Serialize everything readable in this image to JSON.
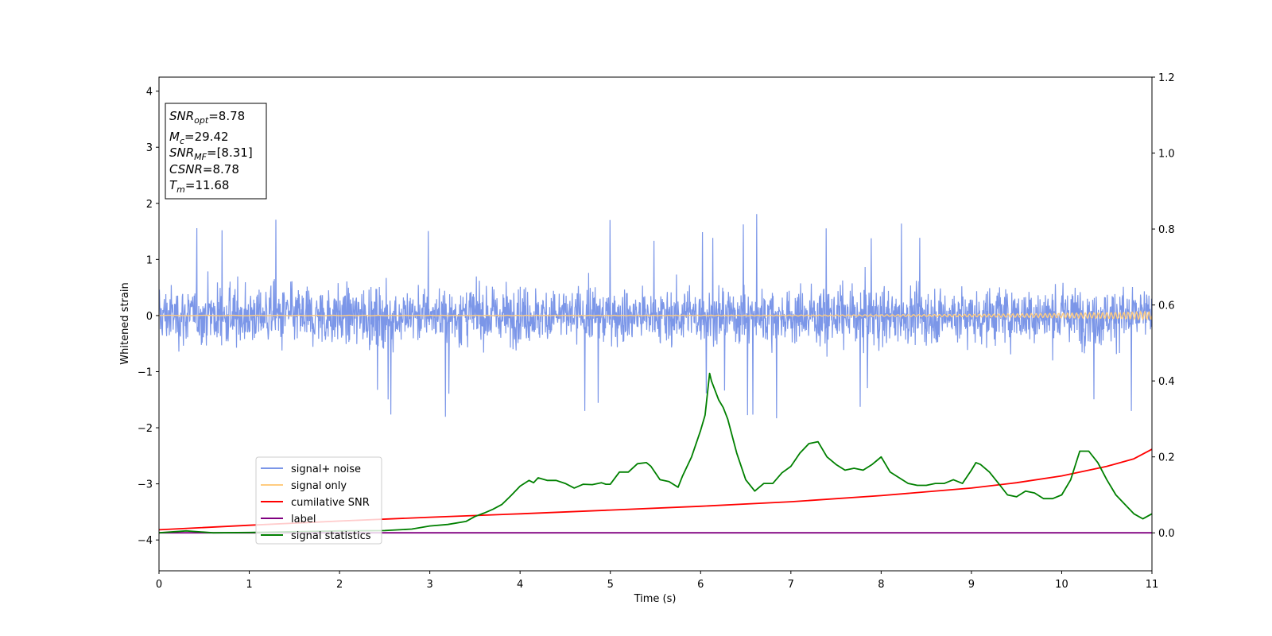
{
  "chart_data": {
    "type": "line",
    "title": "",
    "xlabel": "Time (s)",
    "ylabel": "Whitened strain",
    "y2label": "",
    "xlim": [
      0,
      11
    ],
    "ylim": [
      -4.55,
      4.25
    ],
    "y2lim": [
      -0.1,
      1.2
    ],
    "x_ticks": [
      "0",
      "1",
      "2",
      "3",
      "4",
      "5",
      "6",
      "7",
      "8",
      "9",
      "10",
      "11"
    ],
    "y_ticks": [
      "−4",
      "−3",
      "−2",
      "−1",
      "0",
      "1",
      "2",
      "3",
      "4"
    ],
    "y2_ticks": [
      "0.0",
      "0.2",
      "0.4",
      "0.6",
      "0.8",
      "1.0",
      "1.2"
    ],
    "grid": false,
    "legend_position": "lower-left",
    "info_box": {
      "lines": [
        {
          "sym": "SNR",
          "sub": "opt",
          "val": "=8.78"
        },
        {
          "sym": "M",
          "sub": "c",
          "val": "=29.42"
        },
        {
          "sym": "SNR",
          "sub": "MF",
          "val": "=[8.31]"
        },
        {
          "sym": "CSNR",
          "sub": "",
          "val": "=8.78"
        },
        {
          "sym": "T",
          "sub": "m",
          "val": "=11.68"
        }
      ]
    },
    "series": [
      {
        "name": "signal+ noise",
        "color": "#7b96e8",
        "axis": "left",
        "kind": "noise",
        "center": 0,
        "typical_amplitude": 0.85,
        "max_amplitude": 1.9,
        "min_value": -1.95
      },
      {
        "name": "signal only",
        "color": "#ffcc80",
        "axis": "left",
        "kind": "chirp",
        "amplitude_start": 0.004,
        "amplitude_end": 0.07
      },
      {
        "name": "cumilative SNR",
        "color": "#ff0000",
        "axis": "right",
        "x": [
          0,
          1,
          2,
          3,
          4,
          5,
          6,
          7,
          8,
          9,
          9.5,
          10,
          10.5,
          10.8,
          11
        ],
        "values": [
          0.008,
          0.02,
          0.031,
          0.041,
          0.05,
          0.06,
          0.07,
          0.082,
          0.098,
          0.118,
          0.132,
          0.15,
          0.175,
          0.195,
          0.22
        ]
      },
      {
        "name": "label",
        "color": "#800080",
        "axis": "right",
        "x": [
          0,
          11
        ],
        "values": [
          0,
          0
        ]
      },
      {
        "name": "signal statistics",
        "color": "#008000",
        "axis": "right",
        "x": [
          0,
          0.3,
          0.6,
          1.0,
          1.5,
          2.0,
          2.5,
          2.8,
          3.0,
          3.2,
          3.4,
          3.5,
          3.6,
          3.7,
          3.8,
          3.9,
          4.0,
          4.1,
          4.15,
          4.2,
          4.3,
          4.4,
          4.5,
          4.6,
          4.7,
          4.8,
          4.9,
          4.95,
          5.0,
          5.1,
          5.2,
          5.3,
          5.4,
          5.45,
          5.55,
          5.65,
          5.75,
          5.8,
          5.9,
          6.0,
          6.05,
          6.1,
          6.12,
          6.2,
          6.25,
          6.3,
          6.4,
          6.5,
          6.6,
          6.7,
          6.8,
          6.9,
          7.0,
          7.1,
          7.2,
          7.3,
          7.4,
          7.5,
          7.6,
          7.7,
          7.8,
          7.9,
          7.95,
          8.0,
          8.1,
          8.2,
          8.3,
          8.4,
          8.5,
          8.6,
          8.7,
          8.8,
          8.9,
          9.0,
          9.05,
          9.1,
          9.2,
          9.3,
          9.4,
          9.5,
          9.6,
          9.7,
          9.8,
          9.9,
          10.0,
          10.1,
          10.2,
          10.3,
          10.4,
          10.5,
          10.6,
          10.7,
          10.8,
          10.9,
          11.0
        ],
        "values": [
          0.0,
          0.005,
          0.0,
          0.001,
          0.003,
          0.005,
          0.006,
          0.01,
          0.018,
          0.022,
          0.03,
          0.043,
          0.052,
          0.062,
          0.075,
          0.098,
          0.123,
          0.138,
          0.132,
          0.145,
          0.138,
          0.138,
          0.13,
          0.118,
          0.128,
          0.127,
          0.132,
          0.128,
          0.128,
          0.16,
          0.16,
          0.182,
          0.185,
          0.175,
          0.14,
          0.135,
          0.12,
          0.15,
          0.2,
          0.27,
          0.31,
          0.42,
          0.4,
          0.35,
          0.33,
          0.3,
          0.21,
          0.14,
          0.11,
          0.13,
          0.13,
          0.158,
          0.175,
          0.21,
          0.235,
          0.24,
          0.2,
          0.18,
          0.165,
          0.17,
          0.165,
          0.18,
          0.19,
          0.2,
          0.16,
          0.145,
          0.13,
          0.125,
          0.125,
          0.13,
          0.13,
          0.14,
          0.13,
          0.165,
          0.185,
          0.18,
          0.16,
          0.13,
          0.1,
          0.095,
          0.11,
          0.105,
          0.09,
          0.09,
          0.1,
          0.14,
          0.215,
          0.215,
          0.185,
          0.14,
          0.1,
          0.075,
          0.05,
          0.037,
          0.05
        ]
      }
    ]
  }
}
